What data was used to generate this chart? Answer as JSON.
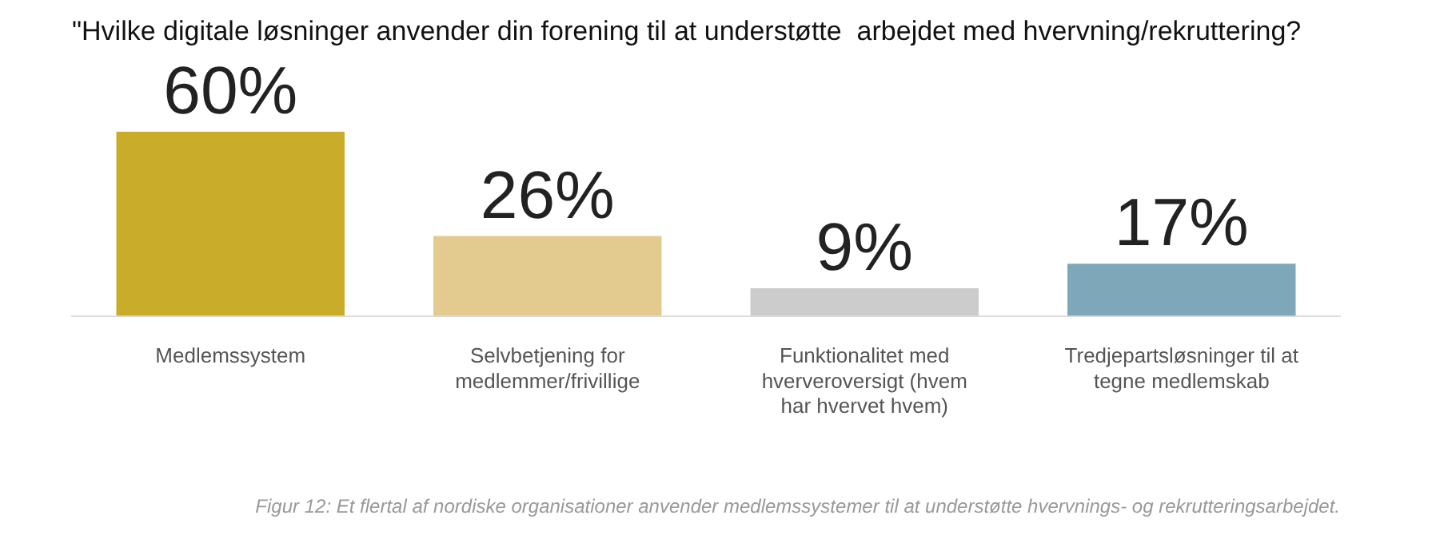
{
  "chart_data": {
    "type": "bar",
    "title": "\"Hvilke digitale løsninger anvender din forening til at understøtte  arbejdet med hvervning/rekruttering?",
    "categories": [
      "Medlemssystem",
      "Selvbetjening for medlemmer/frivillige",
      "Funktionalitet med hververoversigt (hvem har hvervet hvem)",
      "Tredjepartsløsninger til at tegne medlemskab"
    ],
    "values": [
      60,
      26,
      9,
      17
    ],
    "colors": [
      "#c9ad2a",
      "#e3cb8f",
      "#cccccc",
      "#7ea8ba"
    ],
    "value_labels": [
      "60%",
      "26%",
      "9%",
      "17%"
    ],
    "annotations": [
      "Figur 12: Et flertal af nordiske organisationer anvender medlemssystemer til at understøtte hvervnings- og rekrutteringsarbejdet."
    ],
    "legend": false,
    "grid": false
  }
}
